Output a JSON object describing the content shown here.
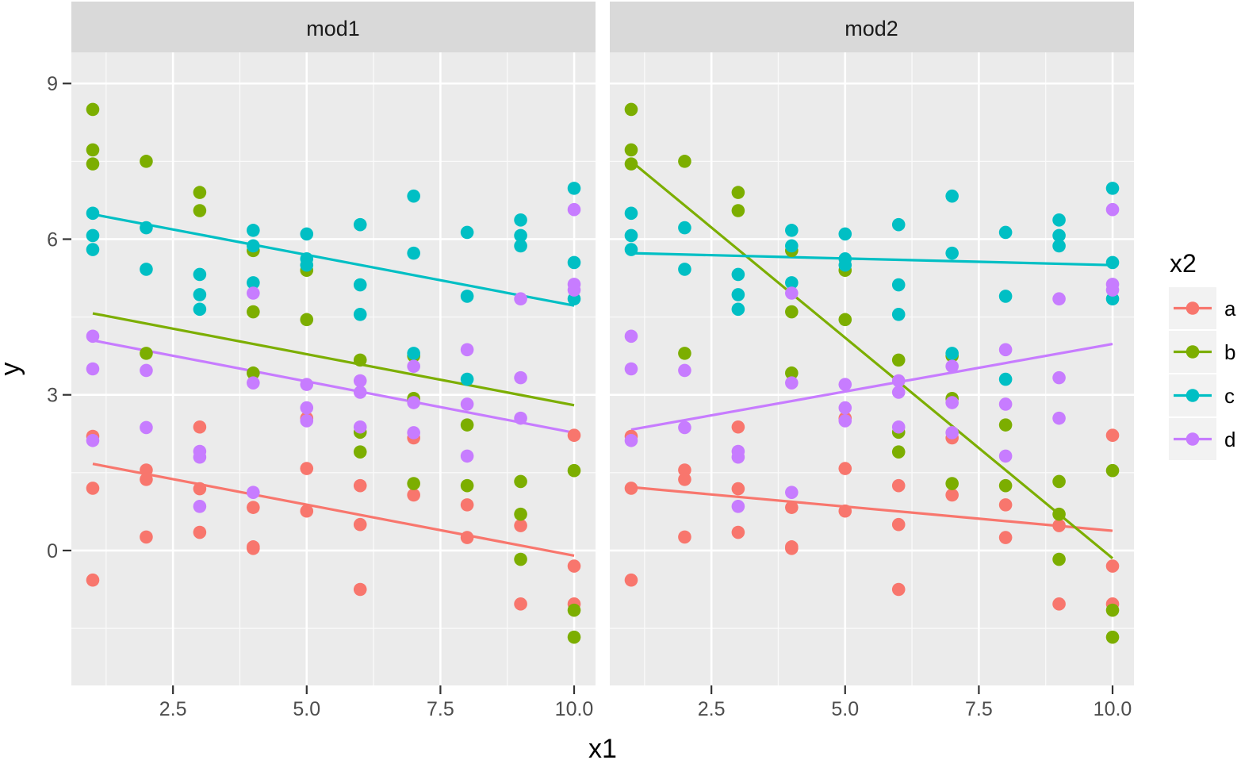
{
  "chart_data": {
    "type": "scatter",
    "xlabel": "x1",
    "ylabel": "y",
    "xlim": [
      0.6,
      10.4
    ],
    "ylim": [
      -2.6,
      9.6
    ],
    "x_ticks": [
      2.5,
      5.0,
      7.5,
      10.0
    ],
    "x_tick_labels": [
      "2.5",
      "5.0",
      "7.5",
      "10.0"
    ],
    "y_ticks": [
      0,
      3,
      6,
      9
    ],
    "y_tick_labels": [
      "0",
      "3",
      "6",
      "9"
    ],
    "grid": true,
    "legend": {
      "title": "x2",
      "position": "right",
      "entries": [
        {
          "label": "a",
          "color": "#F8766D"
        },
        {
          "label": "b",
          "color": "#7CAE00"
        },
        {
          "label": "c",
          "color": "#00BFC4"
        },
        {
          "label": "d",
          "color": "#C77CFF"
        }
      ]
    },
    "points": {
      "a": [
        [
          1,
          2.2
        ],
        [
          1,
          1.2
        ],
        [
          1,
          -0.57
        ],
        [
          2,
          1.55
        ],
        [
          2,
          1.37
        ],
        [
          2,
          0.26
        ],
        [
          3,
          2.38
        ],
        [
          3,
          1.19
        ],
        [
          3,
          0.35
        ],
        [
          4,
          0.83
        ],
        [
          4,
          0.07
        ],
        [
          4,
          0.04
        ],
        [
          5,
          2.55
        ],
        [
          5,
          1.58
        ],
        [
          5,
          0.76
        ],
        [
          6,
          1.25
        ],
        [
          6,
          0.5
        ],
        [
          6,
          -0.75
        ],
        [
          7,
          2.17
        ],
        [
          7,
          1.07
        ],
        [
          8,
          0.88
        ],
        [
          8,
          0.25
        ],
        [
          9,
          0.48
        ],
        [
          9,
          -1.03
        ],
        [
          10,
          2.22
        ],
        [
          10,
          -0.3
        ],
        [
          10,
          -1.03
        ]
      ],
      "b": [
        [
          1,
          8.5
        ],
        [
          1,
          7.72
        ],
        [
          1,
          7.45
        ],
        [
          2,
          7.5
        ],
        [
          2,
          3.8
        ],
        [
          3,
          6.9
        ],
        [
          3,
          6.55
        ],
        [
          4,
          5.78
        ],
        [
          4,
          4.6
        ],
        [
          4,
          3.42
        ],
        [
          5,
          5.4
        ],
        [
          5,
          4.45
        ],
        [
          6,
          3.67
        ],
        [
          6,
          2.28
        ],
        [
          6,
          1.9
        ],
        [
          7,
          3.75
        ],
        [
          7,
          2.93
        ],
        [
          7,
          1.29
        ],
        [
          8,
          2.42
        ],
        [
          8,
          1.25
        ],
        [
          9,
          1.33
        ],
        [
          9,
          0.7
        ],
        [
          9,
          -0.17
        ],
        [
          10,
          1.54
        ],
        [
          10,
          -1.15
        ],
        [
          10,
          -1.67
        ]
      ],
      "c": [
        [
          1,
          6.5
        ],
        [
          1,
          6.07
        ],
        [
          1,
          5.8
        ],
        [
          2,
          6.22
        ],
        [
          2,
          5.42
        ],
        [
          3,
          5.32
        ],
        [
          3,
          4.93
        ],
        [
          3,
          4.65
        ],
        [
          4,
          6.17
        ],
        [
          4,
          5.87
        ],
        [
          4,
          5.16
        ],
        [
          5,
          6.1
        ],
        [
          5,
          5.62
        ],
        [
          5,
          5.5
        ],
        [
          6,
          6.28
        ],
        [
          6,
          5.12
        ],
        [
          6,
          4.55
        ],
        [
          7,
          6.83
        ],
        [
          7,
          5.73
        ],
        [
          7,
          3.8
        ],
        [
          8,
          6.13
        ],
        [
          8,
          4.9
        ],
        [
          8,
          3.3
        ],
        [
          9,
          6.37
        ],
        [
          9,
          6.07
        ],
        [
          9,
          5.87
        ],
        [
          10,
          6.98
        ],
        [
          10,
          5.55
        ],
        [
          10,
          4.85
        ]
      ],
      "d": [
        [
          1,
          4.13
        ],
        [
          1,
          3.5
        ],
        [
          1,
          2.12
        ],
        [
          2,
          3.47
        ],
        [
          2,
          2.37
        ],
        [
          3,
          1.91
        ],
        [
          3,
          1.8
        ],
        [
          3,
          0.85
        ],
        [
          4,
          4.96
        ],
        [
          4,
          3.23
        ],
        [
          4,
          1.12
        ],
        [
          5,
          3.2
        ],
        [
          5,
          2.75
        ],
        [
          5,
          2.5
        ],
        [
          6,
          3.27
        ],
        [
          6,
          3.05
        ],
        [
          6,
          2.38
        ],
        [
          7,
          3.55
        ],
        [
          7,
          2.85
        ],
        [
          7,
          2.27
        ],
        [
          8,
          3.87
        ],
        [
          8,
          2.82
        ],
        [
          8,
          1.82
        ],
        [
          9,
          4.85
        ],
        [
          9,
          3.33
        ],
        [
          9,
          2.55
        ],
        [
          10,
          6.57
        ],
        [
          10,
          5.13
        ],
        [
          10,
          5.02
        ]
      ]
    },
    "panels": [
      {
        "strip_label": "mod1",
        "fits": {
          "a": [
            [
              1,
              1.67
            ],
            [
              10,
              -0.1
            ]
          ],
          "b": [
            [
              1,
              4.57
            ],
            [
              10,
              2.8
            ]
          ],
          "c": [
            [
              1,
              6.48
            ],
            [
              10,
              4.72
            ]
          ],
          "d": [
            [
              1,
              4.05
            ],
            [
              10,
              2.27
            ]
          ]
        }
      },
      {
        "strip_label": "mod2",
        "fits": {
          "a": [
            [
              1,
              1.22
            ],
            [
              10,
              0.38
            ]
          ],
          "b": [
            [
              1,
              7.5
            ],
            [
              10,
              -0.15
            ]
          ],
          "c": [
            [
              1,
              5.73
            ],
            [
              10,
              5.5
            ]
          ],
          "d": [
            [
              1,
              2.33
            ],
            [
              10,
              3.98
            ]
          ]
        }
      }
    ]
  }
}
